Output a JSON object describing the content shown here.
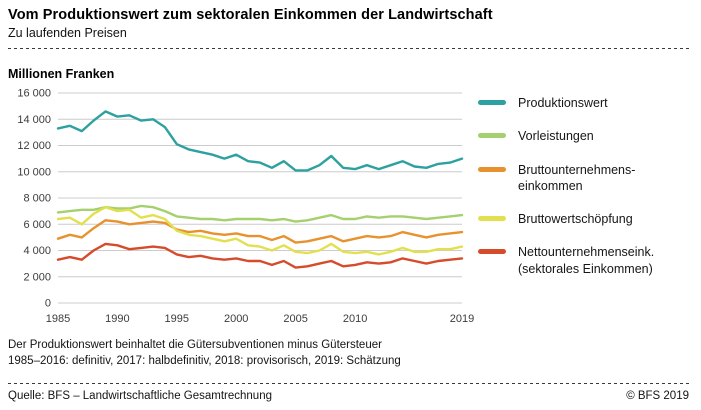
{
  "header": {
    "title": "Vom Produktionswert zum sektoralen Einkommen der Landwirtschaft",
    "subtitle": "Zu laufenden Preisen"
  },
  "chart": {
    "unit_label": "Millionen Franken"
  },
  "chart_data": {
    "type": "line",
    "title": "Vom Produktionswert zum sektoralen Einkommen der Landwirtschaft",
    "subtitle": "Zu laufenden Preisen",
    "xlabel": "",
    "ylabel": "Millionen Franken",
    "ylim": [
      0,
      16000
    ],
    "grid": true,
    "legend_position": "right",
    "x": [
      1985,
      1986,
      1987,
      1988,
      1989,
      1990,
      1991,
      1992,
      1993,
      1994,
      1995,
      1996,
      1997,
      1998,
      1999,
      2000,
      2001,
      2002,
      2003,
      2004,
      2005,
      2006,
      2007,
      2008,
      2009,
      2010,
      2011,
      2012,
      2013,
      2014,
      2015,
      2016,
      2017,
      2018,
      2019
    ],
    "xticks": [
      {
        "value": 1985,
        "label": "1985"
      },
      {
        "value": 1990,
        "label": "1990"
      },
      {
        "value": 1995,
        "label": "1995"
      },
      {
        "value": 2000,
        "label": "2000"
      },
      {
        "value": 2005,
        "label": "2005"
      },
      {
        "value": 2010,
        "label": "2010"
      },
      {
        "value": 2019,
        "label": "2019"
      }
    ],
    "yticks": [
      {
        "value": 0,
        "label": "0"
      },
      {
        "value": 2000,
        "label": "2 000"
      },
      {
        "value": 4000,
        "label": "4 000"
      },
      {
        "value": 6000,
        "label": "6 000"
      },
      {
        "value": 8000,
        "label": "8 000"
      },
      {
        "value": 10000,
        "label": "10 000"
      },
      {
        "value": 12000,
        "label": "12 000"
      },
      {
        "value": 14000,
        "label": "14 000"
      },
      {
        "value": 16000,
        "label": "16 000"
      }
    ],
    "series": [
      {
        "name": "Produktionswert",
        "legend_label": "Produktionswert",
        "color": "#2da0a0",
        "values": [
          13300,
          13500,
          13100,
          13900,
          14600,
          14200,
          14300,
          13900,
          14000,
          13400,
          12100,
          11700,
          11500,
          11300,
          11000,
          11300,
          10800,
          10700,
          10300,
          10800,
          10100,
          10100,
          10500,
          11200,
          10300,
          10200,
          10500,
          10200,
          10500,
          10800,
          10400,
          10300,
          10600,
          10700,
          11000
        ]
      },
      {
        "name": "Vorleistungen",
        "legend_label": "Vorleistungen",
        "color": "#a5d06e",
        "values": [
          6900,
          7000,
          7100,
          7100,
          7300,
          7200,
          7200,
          7400,
          7300,
          7000,
          6600,
          6500,
          6400,
          6400,
          6300,
          6400,
          6400,
          6400,
          6300,
          6400,
          6200,
          6300,
          6500,
          6700,
          6400,
          6400,
          6600,
          6500,
          6600,
          6600,
          6500,
          6400,
          6500,
          6600,
          6700
        ]
      },
      {
        "name": "Bruttounternehmenseinkommen",
        "legend_label": "Bruttounternehmens-\neinkommen",
        "color": "#e8912f",
        "values": [
          4900,
          5200,
          5000,
          5700,
          6300,
          6200,
          6000,
          6100,
          6200,
          6100,
          5600,
          5400,
          5500,
          5300,
          5200,
          5300,
          5100,
          5100,
          4800,
          5100,
          4600,
          4700,
          4900,
          5100,
          4700,
          4900,
          5100,
          5000,
          5100,
          5400,
          5200,
          5000,
          5200,
          5300,
          5400
        ]
      },
      {
        "name": "Bruttowertschöpfung",
        "legend_label": "Bruttowertschöpfung",
        "color": "#e3e04f",
        "values": [
          6400,
          6500,
          6000,
          6800,
          7300,
          7000,
          7100,
          6500,
          6700,
          6400,
          5500,
          5200,
          5100,
          4900,
          4700,
          4900,
          4400,
          4300,
          4000,
          4400,
          3900,
          3800,
          4000,
          4500,
          3900,
          3800,
          3900,
          3700,
          3900,
          4200,
          3900,
          3900,
          4100,
          4100,
          4300
        ]
      },
      {
        "name": "Nettounternehmenseinkommen (sektorales Einkommen)",
        "legend_label": "Nettounternehmenseink.\n(sektorales Einkommen)",
        "color": "#d54b2b",
        "values": [
          3300,
          3500,
          3300,
          4000,
          4500,
          4400,
          4100,
          4200,
          4300,
          4200,
          3700,
          3500,
          3600,
          3400,
          3300,
          3400,
          3200,
          3200,
          2900,
          3200,
          2700,
          2800,
          3000,
          3200,
          2800,
          2900,
          3100,
          3000,
          3100,
          3400,
          3200,
          3000,
          3200,
          3300,
          3400
        ]
      }
    ]
  },
  "footnotes": {
    "line1": "Der Produktionswert beinhaltet die Gütersubventionen minus Gütersteuer",
    "line2": "1985–2016: definitiv, 2017: halbdefinitiv, 2018: provisorisch, 2019: Schätzung"
  },
  "footer": {
    "source": "Quelle: BFS – Landwirtschaftliche Gesamtrechnung",
    "copyright": "© BFS 2019"
  }
}
